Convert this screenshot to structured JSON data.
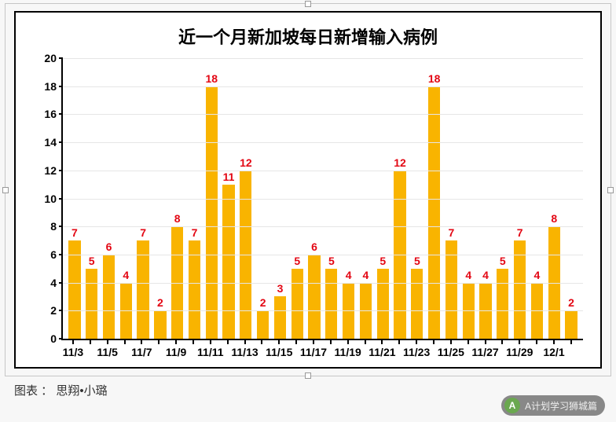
{
  "chart": {
    "type": "bar",
    "title": "近一个月新加坡每日新增输入病例",
    "title_fontsize": 22,
    "title_color": "#000000",
    "background_color": "#ffffff",
    "border_color": "#000000",
    "grid_color": "#e6e6e6",
    "axis_color": "#000000",
    "bar_color": "#f9b400",
    "value_label_color": "#e30613",
    "value_label_fontsize": 14,
    "axis_label_fontsize": 14,
    "bar_width": 0.7,
    "ylim": [
      0,
      20
    ],
    "ytick_step": 2,
    "categories": [
      "11/3",
      "11/4",
      "11/5",
      "11/6",
      "11/7",
      "11/8",
      "11/9",
      "11/10",
      "11/11",
      "11/12",
      "11/13",
      "11/14",
      "11/15",
      "11/16",
      "11/17",
      "11/18",
      "11/19",
      "11/20",
      "11/21",
      "11/22",
      "11/23",
      "11/24",
      "11/25",
      "11/26",
      "11/27",
      "11/28",
      "11/29",
      "11/30",
      "12/1",
      "12/2"
    ],
    "x_tick_every": 2,
    "values": [
      7,
      5,
      6,
      4,
      7,
      2,
      8,
      7,
      18,
      11,
      12,
      2,
      3,
      5,
      6,
      5,
      4,
      4,
      5,
      12,
      5,
      18,
      7,
      4,
      4,
      5,
      7,
      4,
      8,
      2
    ]
  },
  "caption": {
    "prefix": "图表 ：",
    "author": "思翔•小璐"
  },
  "watermark": {
    "icon_letter": "A",
    "icon_bg": "#6aa84f",
    "text": "A计划学习狮城篇"
  }
}
